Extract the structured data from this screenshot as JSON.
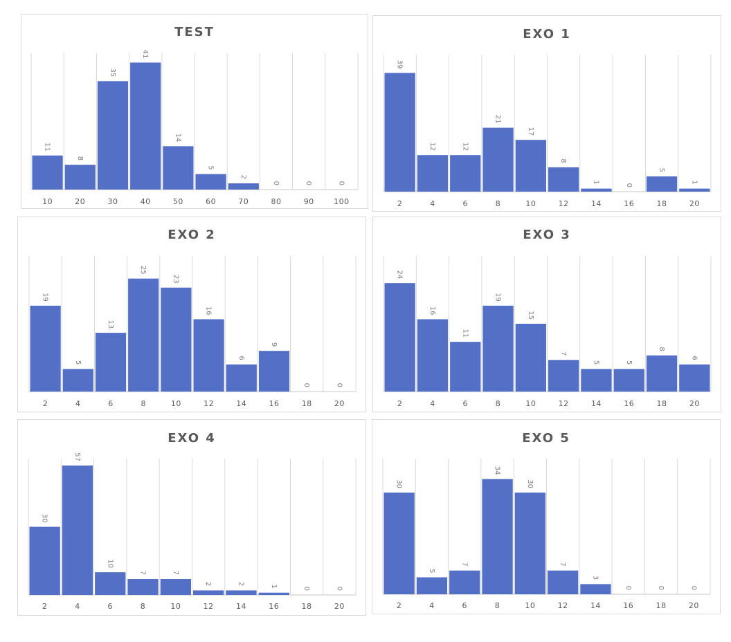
{
  "chart_data": [
    {
      "type": "bar",
      "title": "TEST",
      "categories": [
        "10",
        "20",
        "30",
        "40",
        "50",
        "60",
        "70",
        "80",
        "90",
        "100"
      ],
      "values": [
        11,
        8,
        35,
        41,
        14,
        5,
        2,
        0,
        0,
        0
      ],
      "ylim": [
        0,
        44
      ],
      "grid": true,
      "bar_color": "#5470c6"
    },
    {
      "type": "bar",
      "title": "EXO 1",
      "categories": [
        "2",
        "4",
        "6",
        "8",
        "10",
        "12",
        "14",
        "16",
        "18",
        "20"
      ],
      "values": [
        39,
        12,
        12,
        21,
        17,
        8,
        1,
        0,
        5,
        1
      ],
      "ylim": [
        0,
        45
      ],
      "grid": true,
      "bar_color": "#5470c6"
    },
    {
      "type": "bar",
      "title": "EXO 2",
      "categories": [
        "2",
        "4",
        "6",
        "8",
        "10",
        "12",
        "14",
        "16",
        "18",
        "20"
      ],
      "values": [
        19,
        5,
        13,
        25,
        23,
        16,
        6,
        9,
        0,
        0
      ],
      "ylim": [
        0,
        30
      ],
      "grid": true,
      "bar_color": "#5470c6"
    },
    {
      "type": "bar",
      "title": "EXO 3",
      "categories": [
        "2",
        "4",
        "6",
        "8",
        "10",
        "12",
        "14",
        "16",
        "18",
        "20"
      ],
      "values": [
        24,
        16,
        11,
        19,
        15,
        7,
        5,
        5,
        8,
        6
      ],
      "ylim": [
        0,
        30
      ],
      "grid": true,
      "bar_color": "#5470c6"
    },
    {
      "type": "bar",
      "title": "EXO 4",
      "categories": [
        "2",
        "4",
        "6",
        "8",
        "10",
        "12",
        "14",
        "16",
        "18",
        "20"
      ],
      "values": [
        30,
        57,
        10,
        7,
        7,
        2,
        2,
        1,
        0,
        0
      ],
      "ylim": [
        0,
        60
      ],
      "grid": true,
      "bar_color": "#5470c6"
    },
    {
      "type": "bar",
      "title": "EXO 5",
      "categories": [
        "2",
        "4",
        "6",
        "8",
        "10",
        "12",
        "14",
        "16",
        "18",
        "20"
      ],
      "values": [
        30,
        5,
        7,
        34,
        30,
        7,
        3,
        0,
        0,
        0
      ],
      "ylim": [
        0,
        40
      ],
      "grid": true,
      "bar_color": "#5470c6"
    }
  ]
}
